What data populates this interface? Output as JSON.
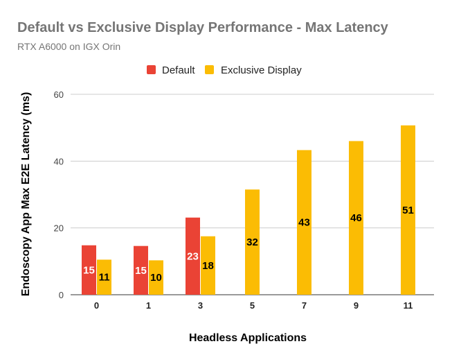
{
  "chart_data": {
    "type": "bar",
    "title": "Default vs Exclusive Display Performance - Max Latency",
    "subtitle": "RTX A6000 on IGX Orin",
    "xlabel": "Headless Applications",
    "ylabel": "Endoscopy App Max E2E Latency (ms)",
    "categories": [
      "0",
      "1",
      "3",
      "5",
      "7",
      "9",
      "11"
    ],
    "ylim": [
      0,
      60
    ],
    "yticks": [
      0,
      20,
      40,
      60
    ],
    "grid": true,
    "legend_position": "top",
    "series": [
      {
        "name": "Default",
        "color": "#ea4335",
        "label_color": "#ffffff",
        "values": [
          14.8,
          14.6,
          23.1,
          null,
          null,
          null,
          null
        ],
        "labels": [
          "15",
          "15",
          "23",
          null,
          null,
          null,
          null
        ]
      },
      {
        "name": "Exclusive Display",
        "color": "#fbbc04",
        "label_color": "#000000",
        "values": [
          10.5,
          10.3,
          17.5,
          31.5,
          43.3,
          46.0,
          50.7
        ],
        "labels": [
          "11",
          "10",
          "18",
          "32",
          "43",
          "46",
          "51"
        ]
      }
    ]
  }
}
